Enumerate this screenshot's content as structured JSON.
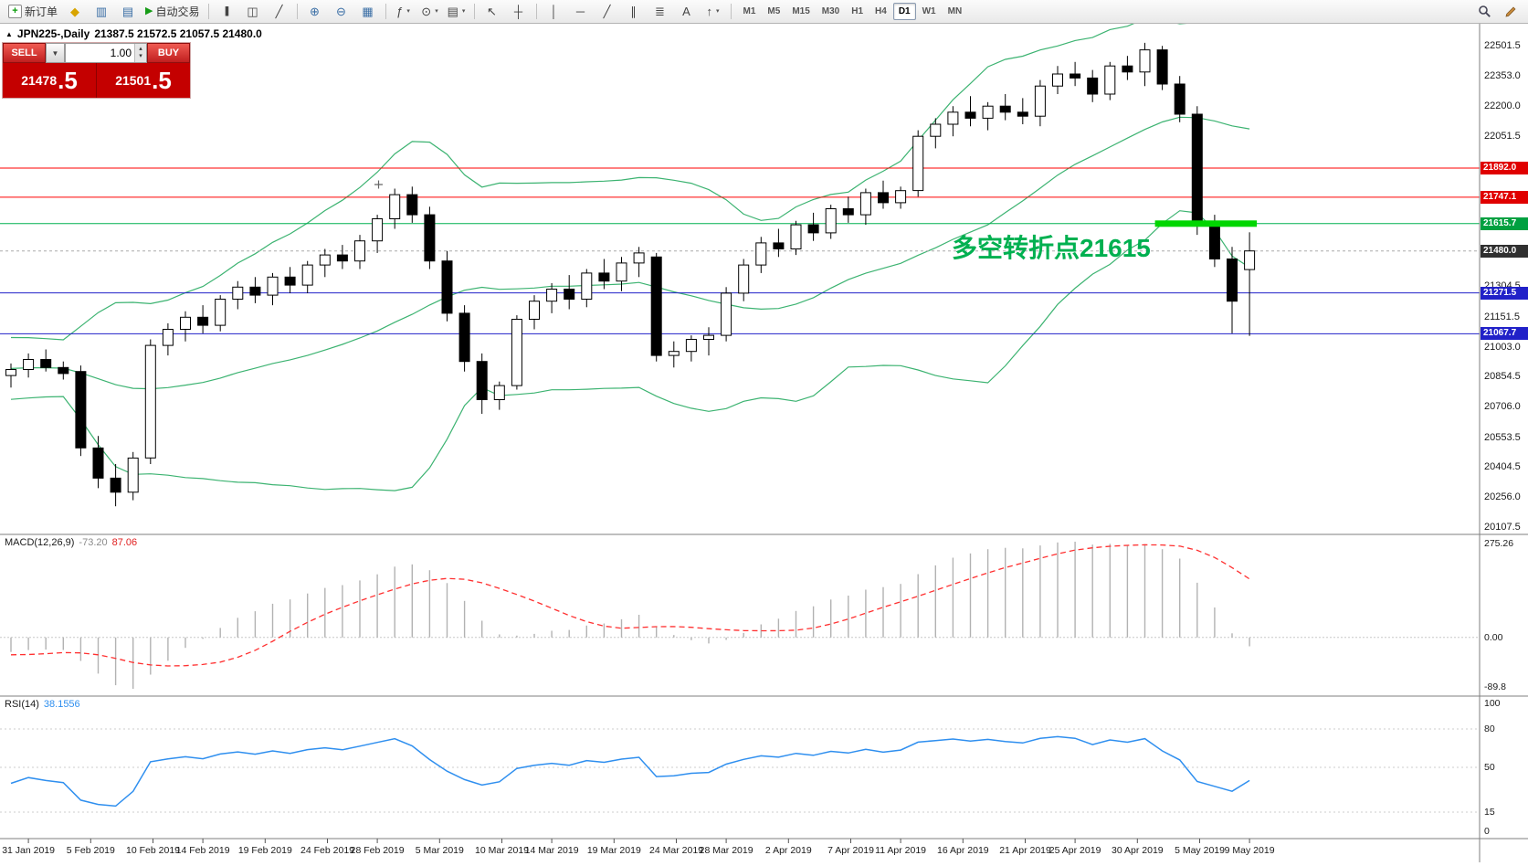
{
  "toolbar": {
    "new_order_label": "新订单",
    "auto_trading_label": "自动交易",
    "timeframes": [
      "M1",
      "M5",
      "M15",
      "M30",
      "H1",
      "H4",
      "D1",
      "W1",
      "MN"
    ],
    "active_timeframe": "D1"
  },
  "chart": {
    "title_symbol": "JPN225-,Daily",
    "title_ohlc": "21387.5 21572.5 21057.5 21480.0",
    "annotation": {
      "text": "多空转折点21615",
      "color": "#00b050"
    },
    "colors": {
      "bull": "#ffffff",
      "bear": "#000000",
      "band": "#3cb371",
      "highlight": "#00d600",
      "wick": "#000000"
    }
  },
  "trade_panel": {
    "sell_label": "SELL",
    "buy_label": "BUY",
    "volume": "1.00",
    "dropdown_arrow": "▼",
    "sell_price_small": "21478",
    "sell_price_large": ".5",
    "buy_price_small": "21501",
    "buy_price_large": ".5"
  },
  "price_axis": {
    "gridline_labels": [
      {
        "text": "22501.5",
        "price": 22501.5
      },
      {
        "text": "22353.0",
        "price": 22353.0
      },
      {
        "text": "22200.0",
        "price": 22200.0
      },
      {
        "text": "22051.5",
        "price": 22051.5
      },
      {
        "text": "21304.5",
        "price": 21304.5
      },
      {
        "text": "21151.5",
        "price": 21151.5
      },
      {
        "text": "21003.0",
        "price": 21003.0
      },
      {
        "text": "20854.5",
        "price": 20854.5
      },
      {
        "text": "20706.0",
        "price": 20706.0
      },
      {
        "text": "20553.5",
        "price": 20553.5
      },
      {
        "text": "20404.5",
        "price": 20404.5
      },
      {
        "text": "20256.0",
        "price": 20256.0
      },
      {
        "text": "20107.5",
        "price": 20107.5
      }
    ],
    "tags": [
      {
        "text": "21892.0",
        "price": 21892.0,
        "bg": "#e00000",
        "line": "#ff0000",
        "style": "solid"
      },
      {
        "text": "21747.1",
        "price": 21747.1,
        "bg": "#e00000",
        "line": "#ff0000",
        "style": "solid"
      },
      {
        "text": "21615.7",
        "price": 21615.7,
        "bg": "#00a040",
        "line": "#00b050",
        "style": "solid"
      },
      {
        "text": "21480.0",
        "price": 21480.0,
        "bg": "#303030",
        "line": "#aaaaaa",
        "style": "dashed"
      },
      {
        "text": "21271.5",
        "price": 21271.5,
        "bg": "#2121c8",
        "line": "#2121c8",
        "style": "solid"
      },
      {
        "text": "21067.7",
        "price": 21067.7,
        "bg": "#2121c8",
        "line": "#2121c8",
        "style": "solid"
      }
    ]
  },
  "chart_data": {
    "type": "candlestick",
    "symbol": "JPN225",
    "timeframe": "Daily",
    "title": "JPN225-,Daily",
    "ohlc_current": {
      "open": 21387.5,
      "high": 21572.5,
      "low": 21057.5,
      "close": 21480.0
    },
    "price_range": {
      "max": 22610,
      "min": 20070
    },
    "highlight_level": 21615.7,
    "overlays": {
      "bollinger_period": 20,
      "bollinger_dev": 2
    },
    "candles": [
      [
        20860,
        20920,
        20800,
        20890
      ],
      [
        20890,
        20970,
        20850,
        20940
      ],
      [
        20940,
        20990,
        20880,
        20900
      ],
      [
        20900,
        20930,
        20840,
        20870
      ],
      [
        20880,
        20910,
        20460,
        20500
      ],
      [
        20500,
        20560,
        20300,
        20350
      ],
      [
        20350,
        20420,
        20210,
        20280
      ],
      [
        20280,
        20480,
        20240,
        20450
      ],
      [
        20450,
        21040,
        20420,
        21010
      ],
      [
        21010,
        21120,
        20960,
        21090
      ],
      [
        21090,
        21180,
        21030,
        21150
      ],
      [
        21150,
        21210,
        21070,
        21110
      ],
      [
        21110,
        21260,
        21080,
        21240
      ],
      [
        21240,
        21330,
        21190,
        21300
      ],
      [
        21300,
        21350,
        21220,
        21260
      ],
      [
        21260,
        21370,
        21210,
        21350
      ],
      [
        21350,
        21400,
        21270,
        21310
      ],
      [
        21310,
        21430,
        21270,
        21410
      ],
      [
        21410,
        21490,
        21350,
        21460
      ],
      [
        21460,
        21510,
        21390,
        21430
      ],
      [
        21430,
        21560,
        21390,
        21530
      ],
      [
        21530,
        21660,
        21470,
        21640
      ],
      [
        21640,
        21790,
        21590,
        21760
      ],
      [
        21760,
        21800,
        21620,
        21660
      ],
      [
        21660,
        21700,
        21390,
        21430
      ],
      [
        21430,
        21480,
        21130,
        21170
      ],
      [
        21170,
        21210,
        20880,
        20930
      ],
      [
        20930,
        20970,
        20670,
        20740
      ],
      [
        20740,
        20830,
        20690,
        20810
      ],
      [
        20810,
        21160,
        20790,
        21140
      ],
      [
        21140,
        21260,
        21090,
        21230
      ],
      [
        21230,
        21320,
        21170,
        21290
      ],
      [
        21290,
        21360,
        21190,
        21240
      ],
      [
        21240,
        21390,
        21200,
        21370
      ],
      [
        21370,
        21440,
        21290,
        21330
      ],
      [
        21330,
        21450,
        21280,
        21420
      ],
      [
        21420,
        21500,
        21350,
        21470
      ],
      [
        21450,
        21470,
        20930,
        20960
      ],
      [
        20960,
        21030,
        20900,
        20980
      ],
      [
        20980,
        21060,
        20930,
        21040
      ],
      [
        21040,
        21100,
        20960,
        21060
      ],
      [
        21060,
        21300,
        21030,
        21270
      ],
      [
        21270,
        21440,
        21230,
        21410
      ],
      [
        21410,
        21550,
        21370,
        21520
      ],
      [
        21520,
        21590,
        21450,
        21490
      ],
      [
        21490,
        21630,
        21460,
        21610
      ],
      [
        21610,
        21670,
        21530,
        21570
      ],
      [
        21570,
        21710,
        21540,
        21690
      ],
      [
        21690,
        21750,
        21620,
        21660
      ],
      [
        21660,
        21790,
        21610,
        21770
      ],
      [
        21770,
        21830,
        21690,
        21720
      ],
      [
        21720,
        21800,
        21690,
        21780
      ],
      [
        21780,
        22080,
        21750,
        22050
      ],
      [
        22050,
        22140,
        21990,
        22110
      ],
      [
        22110,
        22200,
        22050,
        22170
      ],
      [
        22170,
        22250,
        22100,
        22140
      ],
      [
        22140,
        22220,
        22080,
        22200
      ],
      [
        22200,
        22260,
        22130,
        22170
      ],
      [
        22170,
        22240,
        22110,
        22150
      ],
      [
        22150,
        22330,
        22100,
        22300
      ],
      [
        22300,
        22400,
        22260,
        22360
      ],
      [
        22360,
        22420,
        22300,
        22340
      ],
      [
        22340,
        22380,
        22220,
        22260
      ],
      [
        22260,
        22420,
        22230,
        22400
      ],
      [
        22400,
        22450,
        22330,
        22370
      ],
      [
        22370,
        22515,
        22300,
        22480
      ],
      [
        22480,
        22500,
        22280,
        22310
      ],
      [
        22310,
        22350,
        22120,
        22160
      ],
      [
        22160,
        22200,
        21560,
        21620
      ],
      [
        21620,
        21660,
        21400,
        21440
      ],
      [
        21440,
        21500,
        21070,
        21230
      ],
      [
        21387.5,
        21572.5,
        21057.5,
        21480.0
      ]
    ]
  },
  "macd": {
    "label": "MACD(12,26,9)",
    "value": "-73.20",
    "signal_value": "87.06",
    "axis_top": "275.26",
    "axis_zero": "0.00",
    "axis_bottom": "-89.8",
    "params": {
      "fast": 12,
      "slow": 26,
      "signal": 9
    }
  },
  "rsi": {
    "label": "RSI(14)",
    "value": "38.1556",
    "period": 14,
    "axis": [
      {
        "text": "100",
        "level": 100
      },
      {
        "text": "80",
        "level": 80
      },
      {
        "text": "50",
        "level": 50
      },
      {
        "text": "15",
        "level": 15
      },
      {
        "text": "0",
        "level": 0
      }
    ]
  },
  "date_axis": [
    {
      "label": "31 Jan 2019",
      "day": 0
    },
    {
      "label": "5 Feb 2019",
      "day": 5
    },
    {
      "label": "10 Feb 2019",
      "day": 10
    },
    {
      "label": "14 Feb 2019",
      "day": 14
    },
    {
      "label": "19 Feb 2019",
      "day": 19
    },
    {
      "label": "24 Feb 2019",
      "day": 24
    },
    {
      "label": "28 Feb 2019",
      "day": 28
    },
    {
      "label": "5 Mar 2019",
      "day": 33
    },
    {
      "label": "10 Mar 2019",
      "day": 38
    },
    {
      "label": "14 Mar 2019",
      "day": 42
    },
    {
      "label": "19 Mar 2019",
      "day": 47
    },
    {
      "label": "24 Mar 2019",
      "day": 52
    },
    {
      "label": "28 Mar 2019",
      "day": 56
    },
    {
      "label": "2 Apr 2019",
      "day": 61
    },
    {
      "label": "7 Apr 2019",
      "day": 66
    },
    {
      "label": "11 Apr 2019",
      "day": 70
    },
    {
      "label": "16 Apr 2019",
      "day": 75
    },
    {
      "label": "21 Apr 2019",
      "day": 80
    },
    {
      "label": "25 Apr 2019",
      "day": 84
    },
    {
      "label": "30 Apr 2019",
      "day": 89
    },
    {
      "label": "5 May 2019",
      "day": 94
    },
    {
      "label": "9 May 2019",
      "day": 98
    }
  ]
}
